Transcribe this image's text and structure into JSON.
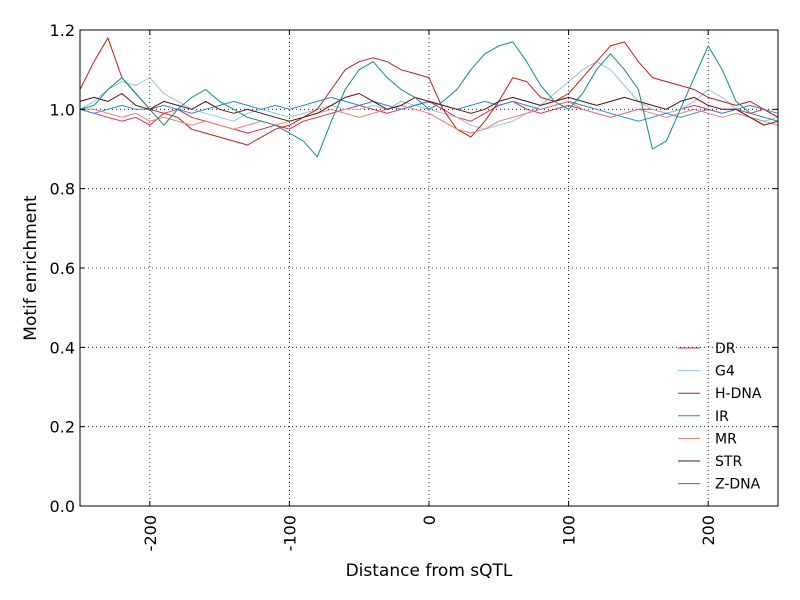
{
  "chart_data": {
    "type": "line",
    "title": "",
    "xlabel": "Distance from sQTL",
    "ylabel": "Motif enrichment",
    "xlim": [
      -250,
      250
    ],
    "ylim": [
      0.0,
      1.2
    ],
    "xticks": [
      -200,
      -100,
      0,
      100,
      200
    ],
    "xtick_labels": [
      "-200",
      "-100",
      "0",
      "100",
      "200"
    ],
    "yticks": [
      0.0,
      0.2,
      0.4,
      0.6,
      0.8,
      1.0,
      1.2
    ],
    "ytick_labels": [
      "0.0",
      "0.2",
      "0.4",
      "0.6",
      "0.8",
      "1.0",
      "1.2"
    ],
    "grid": true,
    "legend_position": "lower-right",
    "x": [
      -250,
      -240,
      -230,
      -220,
      -210,
      -200,
      -190,
      -180,
      -170,
      -160,
      -150,
      -140,
      -130,
      -120,
      -110,
      -100,
      -90,
      -80,
      -70,
      -60,
      -50,
      -40,
      -30,
      -20,
      -10,
      0,
      10,
      20,
      30,
      40,
      50,
      60,
      70,
      80,
      90,
      100,
      110,
      120,
      130,
      140,
      150,
      160,
      170,
      180,
      190,
      200,
      210,
      220,
      230,
      240,
      250
    ],
    "series": [
      {
        "name": "DR",
        "color": "#e8254f",
        "values": [
          1.0,
          0.99,
          0.98,
          0.97,
          0.98,
          0.96,
          0.99,
          1.0,
          0.98,
          0.97,
          0.96,
          0.95,
          0.94,
          0.95,
          0.96,
          0.95,
          0.97,
          0.98,
          0.99,
          1.0,
          1.01,
          1.0,
          0.99,
          1.0,
          1.01,
          1.02,
          1.0,
          0.98,
          0.97,
          0.99,
          1.01,
          1.02,
          1.0,
          0.99,
          1.0,
          1.01,
          1.0,
          0.99,
          0.98,
          0.99,
          1.0,
          1.0,
          0.99,
          1.0,
          1.01,
          1.0,
          0.99,
          1.0,
          0.99,
          1.0,
          0.98
        ]
      },
      {
        "name": "G4",
        "color": "#8fc4e8",
        "values": [
          1.0,
          1.02,
          1.05,
          1.07,
          1.06,
          1.08,
          1.04,
          1.02,
          1.0,
          0.99,
          0.98,
          0.97,
          0.99,
          1.0,
          0.99,
          0.98,
          0.99,
          1.0,
          1.01,
          1.0,
          1.0,
          1.01,
          1.0,
          1.02,
          1.01,
          1.0,
          0.99,
          0.98,
          0.96,
          0.95,
          0.96,
          0.97,
          0.99,
          1.01,
          1.04,
          1.07,
          1.1,
          1.12,
          1.1,
          1.06,
          1.02,
          1.0,
          0.99,
          1.0,
          1.02,
          1.05,
          1.03,
          1.0,
          0.98,
          0.97,
          0.98
        ]
      },
      {
        "name": "H-DNA",
        "color": "#c0200f",
        "values": [
          1.05,
          1.12,
          1.18,
          1.08,
          1.04,
          1.0,
          0.99,
          0.98,
          0.95,
          0.94,
          0.93,
          0.92,
          0.91,
          0.93,
          0.95,
          0.96,
          0.98,
          1.0,
          1.05,
          1.1,
          1.12,
          1.13,
          1.12,
          1.1,
          1.09,
          1.08,
          1.0,
          0.95,
          0.93,
          0.97,
          1.02,
          1.08,
          1.07,
          1.03,
          1.02,
          1.04,
          1.08,
          1.12,
          1.16,
          1.17,
          1.12,
          1.08,
          1.07,
          1.06,
          1.05,
          1.03,
          1.02,
          1.01,
          1.02,
          1.0,
          0.98
        ]
      },
      {
        "name": "IR",
        "color": "#1f8ad6",
        "values": [
          1.0,
          0.99,
          1.0,
          1.01,
          1.0,
          1.0,
          1.01,
          1.0,
          0.99,
          1.0,
          1.01,
          1.02,
          1.01,
          1.0,
          1.01,
          1.0,
          1.01,
          1.02,
          1.03,
          1.02,
          1.01,
          1.02,
          1.01,
          1.0,
          1.01,
          1.02,
          1.01,
          1.0,
          1.01,
          1.02,
          1.01,
          1.02,
          1.01,
          1.0,
          1.01,
          1.02,
          1.01,
          1.0,
          0.99,
          0.98,
          0.97,
          0.98,
          0.99,
          0.98,
          0.99,
          1.0,
          0.99,
          1.0,
          1.01,
          1.0,
          0.99
        ]
      },
      {
        "name": "MR",
        "color": "#f07a6a",
        "values": [
          1.0,
          1.0,
          0.99,
          0.98,
          0.99,
          0.97,
          0.98,
          0.97,
          0.96,
          0.97,
          0.96,
          0.95,
          0.96,
          0.97,
          0.96,
          0.97,
          0.98,
          0.99,
          1.0,
          0.99,
          0.98,
          0.99,
          1.0,
          1.01,
          1.0,
          0.99,
          0.97,
          0.95,
          0.94,
          0.95,
          0.97,
          0.98,
          0.99,
          1.0,
          1.01,
          1.02,
          1.0,
          0.99,
          0.98,
          0.99,
          1.0,
          0.99,
          0.98,
          0.99,
          1.0,
          0.99,
          0.98,
          0.99,
          0.98,
          0.97,
          0.96
        ]
      },
      {
        "name": "STR",
        "color": "#5a0f06",
        "values": [
          1.02,
          1.03,
          1.02,
          1.04,
          1.01,
          1.0,
          1.02,
          1.01,
          1.0,
          1.02,
          1.0,
          0.99,
          1.0,
          0.99,
          0.98,
          0.97,
          0.98,
          0.99,
          1.01,
          1.03,
          1.04,
          1.02,
          1.0,
          1.01,
          1.03,
          1.02,
          1.01,
          1.0,
          0.99,
          1.0,
          1.02,
          1.03,
          1.02,
          1.01,
          1.02,
          1.03,
          1.02,
          1.01,
          1.02,
          1.03,
          1.02,
          1.01,
          1.0,
          1.02,
          1.03,
          1.01,
          1.0,
          1.0,
          0.98,
          0.96,
          0.97
        ]
      },
      {
        "name": "Z-DNA",
        "color": "#0f8a8a",
        "values": [
          1.0,
          1.01,
          1.05,
          1.08,
          1.04,
          1.0,
          0.96,
          1.0,
          1.03,
          1.05,
          1.02,
          1.0,
          0.98,
          0.97,
          0.96,
          0.94,
          0.92,
          0.88,
          0.97,
          1.05,
          1.1,
          1.12,
          1.08,
          1.05,
          1.03,
          1.0,
          1.02,
          1.05,
          1.1,
          1.14,
          1.16,
          1.17,
          1.12,
          1.06,
          1.02,
          1.0,
          1.04,
          1.1,
          1.14,
          1.1,
          1.05,
          0.9,
          0.92,
          1.0,
          1.08,
          1.16,
          1.1,
          1.02,
          0.99,
          0.98,
          0.97
        ]
      }
    ]
  }
}
